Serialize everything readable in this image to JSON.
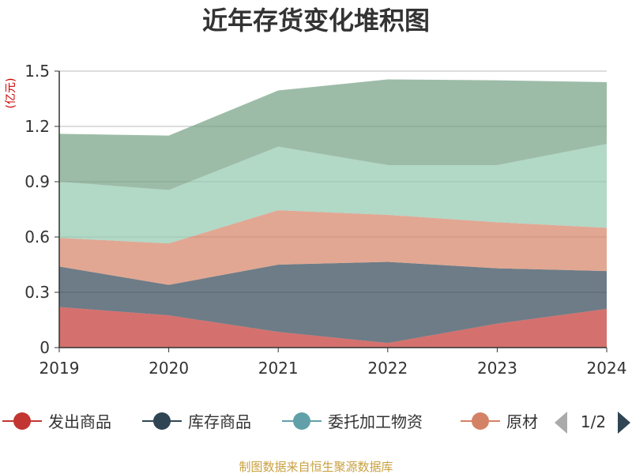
{
  "chart_data": {
    "type": "area",
    "stacked": true,
    "title": "近年存货变化堆积图",
    "unit_label": "(亿元)",
    "x": [
      "2019",
      "2020",
      "2021",
      "2022",
      "2023",
      "2024"
    ],
    "ylim": [
      0,
      1.5
    ],
    "yticks": [
      "0",
      "0.3",
      "0.6",
      "0.9",
      "1.2",
      "1.5"
    ],
    "grid": true,
    "series": [
      {
        "name": "发出商品",
        "color": "#c23531",
        "values": [
          0.22,
          0.175,
          0.085,
          0.025,
          0.13,
          0.21
        ]
      },
      {
        "name": "库存商品",
        "color": "#2f4554",
        "values": [
          0.22,
          0.165,
          0.365,
          0.44,
          0.3,
          0.205
        ]
      },
      {
        "name": "委托加工物资",
        "color": "#61a0a8",
        "values": null
      },
      {
        "name": "原材料",
        "color": "#d48265",
        "values": [
          0.155,
          0.225,
          0.295,
          0.255,
          0.25,
          0.235
        ]
      },
      {
        "name": "",
        "color": "#91c7ae",
        "values": [
          0.305,
          0.29,
          0.345,
          0.27,
          0.31,
          0.455
        ]
      },
      {
        "name": "",
        "color": "#749f83",
        "values": [
          0.26,
          0.295,
          0.305,
          0.465,
          0.46,
          0.335
        ]
      }
    ],
    "legend": {
      "placement": "bottom",
      "visible_labels": [
        "发出商品",
        "库存商品",
        "委托加工物资",
        "原材"
      ],
      "page": "1/2"
    },
    "source": "制图数据来自恒生聚源数据库"
  }
}
